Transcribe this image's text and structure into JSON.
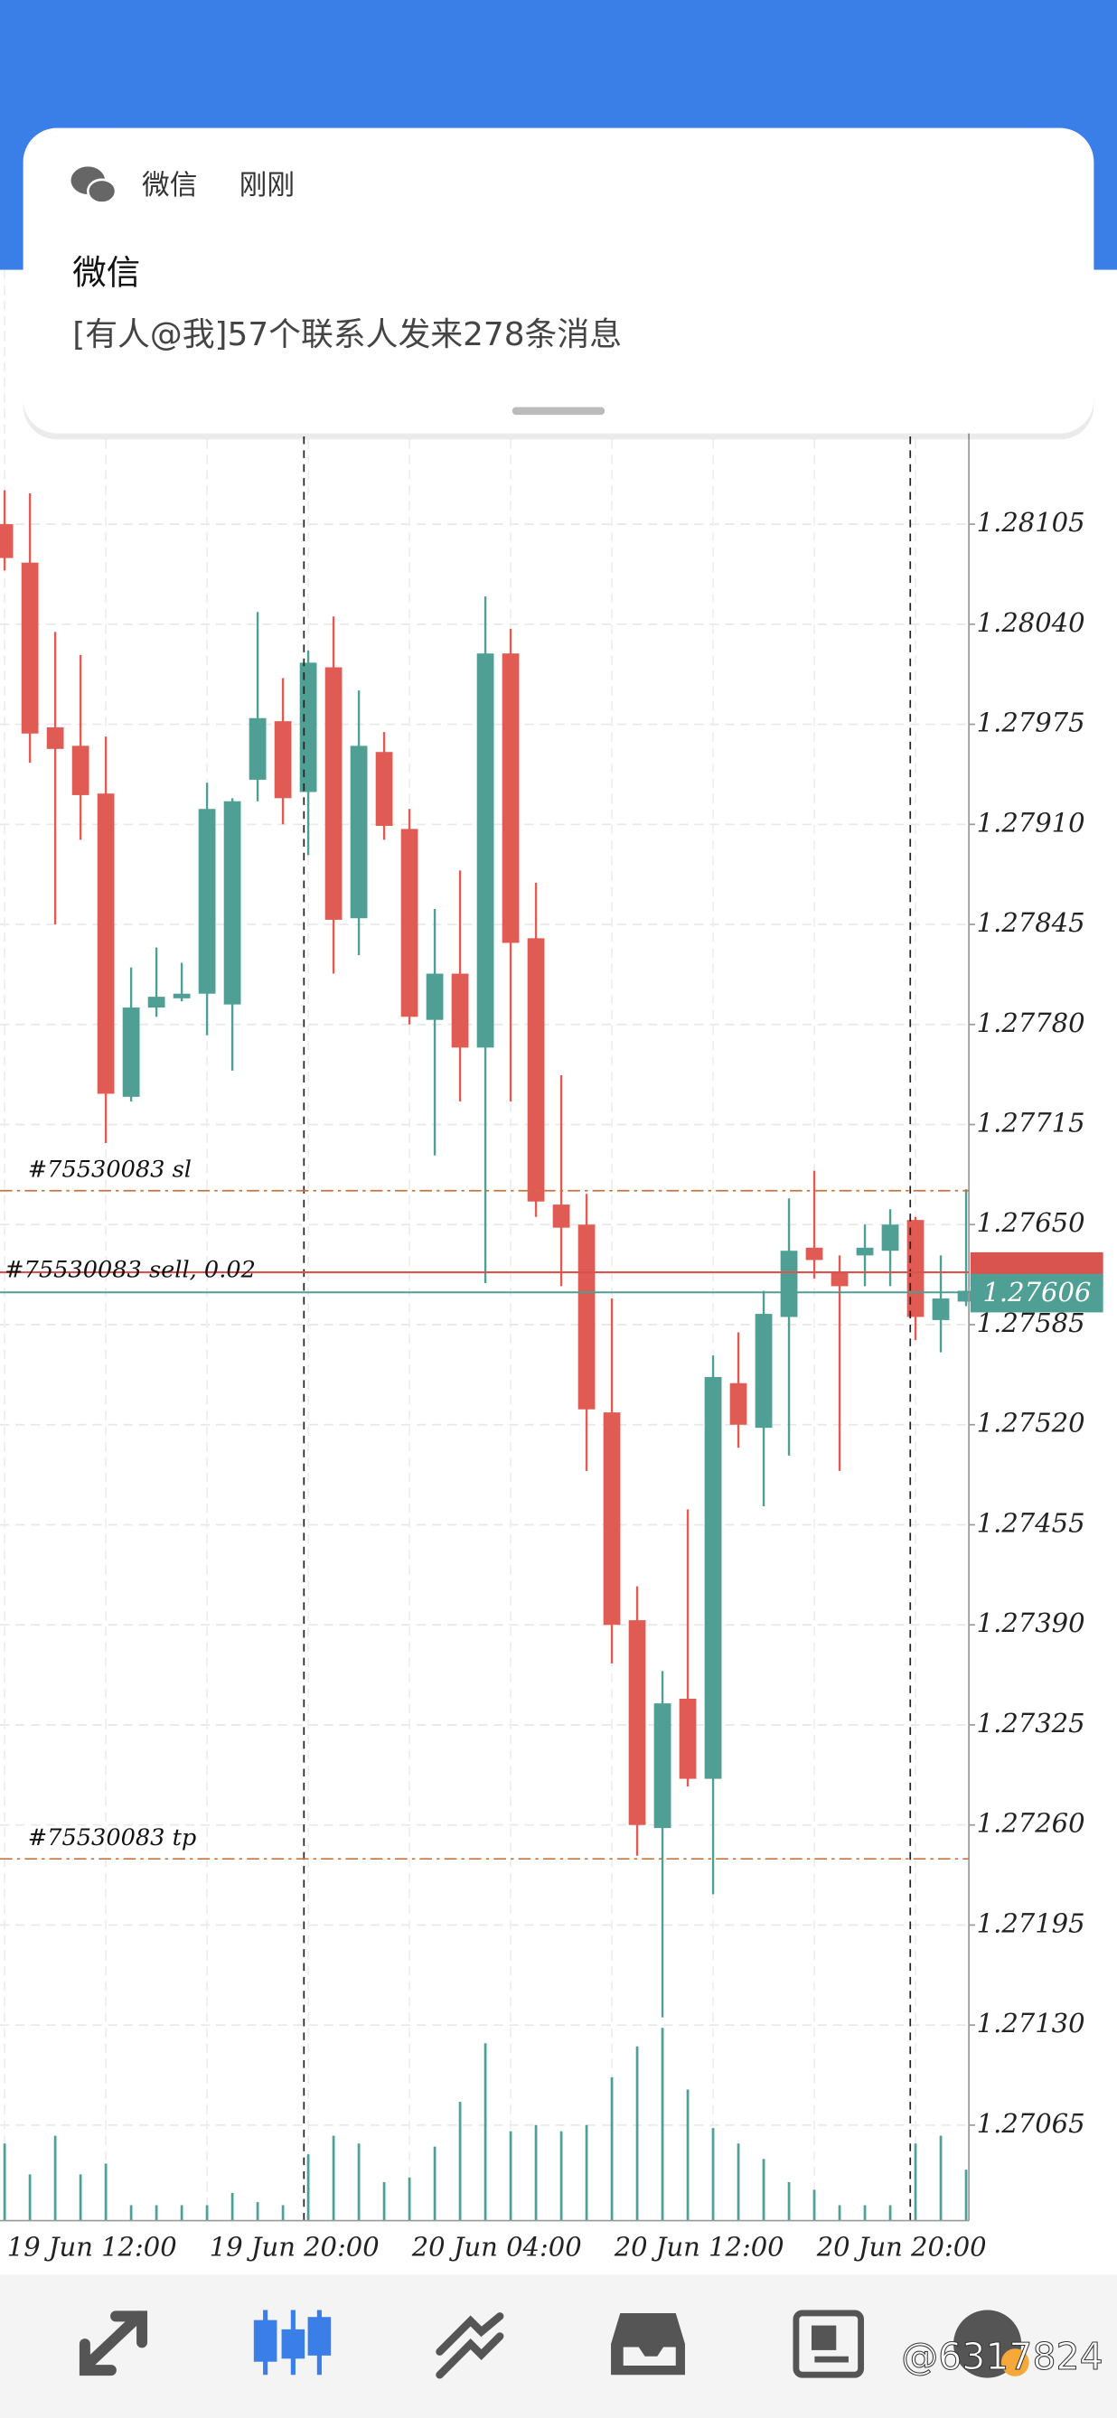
{
  "notification": {
    "app": "微信",
    "time": "刚刚",
    "title": "微信",
    "message": "[有人@我]57个联系人发来278条消息"
  },
  "chart_data": {
    "type": "candlestick",
    "categories": [
      null,
      null,
      null,
      null,
      "19 Jun 12:00",
      null,
      null,
      null,
      null,
      null,
      null,
      null,
      "19 Jun 20:00",
      null,
      null,
      null,
      null,
      null,
      null,
      null,
      "20 Jun 04:00",
      null,
      null,
      null,
      null,
      null,
      null,
      null,
      "20 Jun 12:00",
      null,
      null,
      null,
      null,
      null,
      null,
      null,
      "20 Jun 20:00",
      null,
      null
    ],
    "open": [
      1.28105,
      1.2808,
      1.27973,
      1.27961,
      1.2793,
      1.27733,
      1.27791,
      1.27797,
      1.278,
      1.27793,
      1.27939,
      1.27977,
      1.27931,
      1.28012,
      1.27849,
      1.27957,
      1.27907,
      1.27783,
      1.27813,
      1.27765,
      1.28021,
      1.27836,
      1.27663,
      1.2765,
      1.27528,
      1.27393,
      1.27258,
      1.27342,
      1.2729,
      1.27547,
      1.27518,
      1.2759,
      1.27635,
      1.27619,
      1.2763,
      1.27633,
      1.27653,
      1.27588,
      1.276
    ],
    "high": [
      1.28127,
      1.28125,
      1.28035,
      1.2802,
      1.27967,
      1.27817,
      1.2783,
      1.2782,
      1.27937,
      1.27927,
      1.28048,
      1.28005,
      1.28023,
      1.28045,
      1.27997,
      1.2797,
      1.2792,
      1.27855,
      1.2788,
      1.28058,
      1.28037,
      1.27872,
      1.27747,
      1.2767,
      1.27602,
      1.27415,
      1.2736,
      1.27465,
      1.27565,
      1.2758,
      1.27607,
      1.27667,
      1.27685,
      1.2763,
      1.2765,
      1.2766,
      1.27655,
      1.2763,
      1.27673
    ],
    "low": [
      1.28075,
      1.2795,
      1.27845,
      1.279,
      1.27703,
      1.2773,
      1.27785,
      1.27795,
      1.27773,
      1.2775,
      1.27925,
      1.2791,
      1.2789,
      1.27813,
      1.27825,
      1.279,
      1.2778,
      1.27695,
      1.2773,
      1.27612,
      1.2773,
      1.27655,
      1.2761,
      1.2749,
      1.27365,
      1.2724,
      1.27135,
      1.27285,
      1.27215,
      1.27505,
      1.27467,
      1.275,
      1.27615,
      1.2749,
      1.2761,
      1.2761,
      1.27575,
      1.27567,
      1.27597
    ],
    "close": [
      1.28083,
      1.27969,
      1.27959,
      1.27929,
      1.27735,
      1.27791,
      1.27798,
      1.278,
      1.2792,
      1.27925,
      1.27979,
      1.27927,
      1.28015,
      1.27848,
      1.27961,
      1.27909,
      1.27785,
      1.27813,
      1.27765,
      1.28021,
      1.27833,
      1.27665,
      1.27648,
      1.2753,
      1.2739,
      1.2726,
      1.27339,
      1.2729,
      1.27551,
      1.2752,
      1.27592,
      1.27633,
      1.27627,
      1.2761,
      1.27635,
      1.2765,
      1.2759,
      1.27602,
      1.27607
    ],
    "volume": [
      50,
      30,
      55,
      30,
      37,
      10,
      10,
      10,
      10,
      18,
      12,
      10,
      43,
      55,
      50,
      25,
      28,
      48,
      77,
      115,
      58,
      62,
      58,
      62,
      93,
      113,
      125,
      85,
      60,
      50,
      40,
      25,
      20,
      10,
      10,
      10,
      50,
      55,
      33
    ],
    "up_color": "#4f9f94",
    "down_color": "#df5b53",
    "ylim": [
      1.27003,
      1.28163
    ],
    "yticks": [
      1.28105,
      {
        "value": 1.2804,
        "label": "1.28040"
      },
      1.27975,
      {
        "value": 1.2791,
        "label": "1.27910"
      },
      1.27845,
      {
        "value": 1.2778,
        "label": "1.27780"
      },
      1.27715,
      {
        "value": 1.2765,
        "label": "1.27650"
      },
      1.27585,
      {
        "value": 1.2752,
        "label": "1.27520"
      },
      1.27455,
      {
        "value": 1.2739,
        "label": "1.27390"
      },
      1.27325,
      {
        "value": 1.2726,
        "label": "1.27260"
      },
      1.27195,
      {
        "value": 1.2713,
        "label": "1.27130"
      },
      1.27065
    ],
    "grid": true,
    "orders": [
      {
        "label": "#75530083 sl",
        "value": 1.27672,
        "color": "#c8743f"
      },
      {
        "label": "#75530083 sell, 0.02",
        "value": 1.27619,
        "color": "#d9534f"
      },
      {
        "label": "#75530083 tp",
        "value": 1.27238,
        "color": "#c8743f"
      }
    ],
    "bid": 1.27606,
    "bid_color": "#4f9f94"
  },
  "watermark": "@6317824"
}
